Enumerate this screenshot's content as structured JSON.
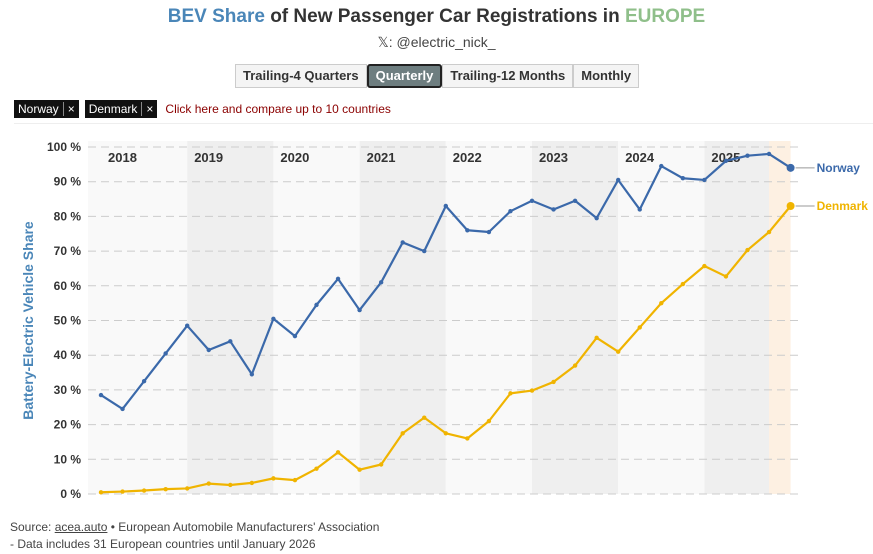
{
  "header": {
    "title_part1": "BEV Share",
    "title_part2": " of New Passenger Car Registrations in ",
    "title_part3": "EUROPE",
    "subtitle": "𝕏: @electric_nick_"
  },
  "tabs": [
    {
      "label": "Trailing-4 Quarters",
      "active": false
    },
    {
      "label": "Quarterly",
      "active": true
    },
    {
      "label": "Trailing-12 Months",
      "active": false
    },
    {
      "label": "Monthly",
      "active": false
    }
  ],
  "chips": [
    {
      "label": "Norway",
      "close": "×"
    },
    {
      "label": "Denmark",
      "close": "×"
    }
  ],
  "compare_cta": "Click here and compare up to 10 countries",
  "footer": {
    "source_prefix": "Source: ",
    "source_link": "acea.auto",
    "source_suffix": " • European Automobile Manufacturers' Association",
    "note": "- Data includes 31 European countries until January 2026"
  },
  "colors": {
    "title_blue": "#4a86b8",
    "title_green": "#8fbf8a",
    "norway": "#3b69aa",
    "denmark": "#f0b400",
    "band_gray": "#efefef",
    "band_light": "#f9f9f9",
    "highlight": "#fdf0e2"
  },
  "chart_data": {
    "type": "line",
    "ylabel": "Battery-Electric Vehicle Share",
    "ylim": [
      0,
      100
    ],
    "yticks": [
      "0 %",
      "10 %",
      "20 %",
      "30 %",
      "40 %",
      "50 %",
      "60 %",
      "70 %",
      "80 %",
      "90 %",
      "100 %"
    ],
    "year_labels": [
      "2018",
      "2019",
      "2020",
      "2021",
      "2022",
      "2023",
      "2024",
      "2025"
    ],
    "x": [
      "2018 Q1",
      "2018 Q2",
      "2018 Q3",
      "2018 Q4",
      "2019 Q1",
      "2019 Q2",
      "2019 Q3",
      "2019 Q4",
      "2020 Q1",
      "2020 Q2",
      "2020 Q3",
      "2020 Q4",
      "2021 Q1",
      "2021 Q2",
      "2021 Q3",
      "2021 Q4",
      "2022 Q1",
      "2022 Q2",
      "2022 Q3",
      "2022 Q4",
      "2023 Q1",
      "2023 Q2",
      "2023 Q3",
      "2023 Q4",
      "2024 Q1",
      "2024 Q2",
      "2024 Q3",
      "2024 Q4",
      "2025 Q1",
      "2025 Q2",
      "2025 Q3",
      "2025 Q4",
      "2026 Q1"
    ],
    "grid": true,
    "series": [
      {
        "name": "Norway",
        "values": [
          28.5,
          24.5,
          32.5,
          40.5,
          48.5,
          41.5,
          44,
          34.5,
          50.5,
          45.5,
          54.5,
          62,
          53,
          61,
          72.5,
          70,
          83,
          76,
          75.5,
          81.5,
          84.5,
          82,
          84.5,
          79.5,
          90.5,
          82,
          94.5,
          91,
          90.5,
          96,
          97.5,
          98,
          94
        ]
      },
      {
        "name": "Denmark",
        "values": [
          0.5,
          0.7,
          1.0,
          1.4,
          1.6,
          3,
          2.6,
          3.2,
          4.5,
          4,
          7.3,
          12,
          7,
          8.5,
          17.5,
          22,
          17.5,
          16,
          21,
          29,
          29.8,
          32.3,
          37,
          45,
          41,
          48,
          55,
          60.5,
          65.7,
          62.7,
          70.3,
          75.5,
          83
        ]
      }
    ]
  }
}
